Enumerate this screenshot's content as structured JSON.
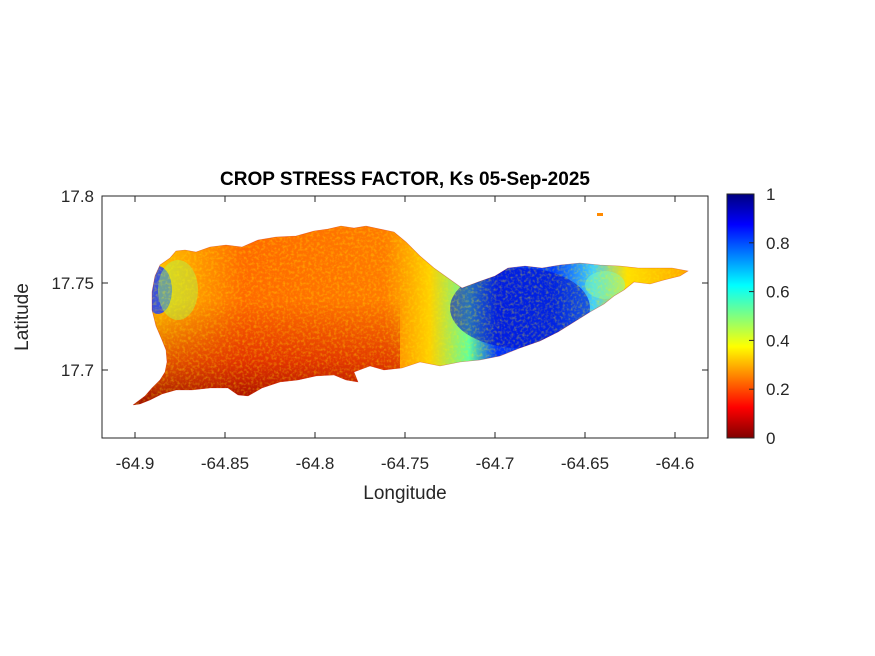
{
  "title": "CROP STRESS FACTOR, Ks  05-Sep-2025",
  "xlabel": "Longitude",
  "ylabel": "Latitude",
  "x_ticks": [
    "-64.9",
    "-64.85",
    "-64.8",
    "-64.75",
    "-64.7",
    "-64.65",
    "-64.6"
  ],
  "y_ticks": [
    "17.8",
    "17.75",
    "17.7"
  ],
  "colorbar": {
    "ticks": [
      "1",
      "0.8",
      "0.6",
      "0.4",
      "0.2",
      "0"
    ],
    "min": 0,
    "max": 1,
    "colormap": "jet"
  },
  "map": {
    "xlim": [
      -64.92,
      -64.57
    ],
    "ylim": [
      17.66,
      17.8
    ],
    "value_field": "Ks",
    "pattern": "low Ks (dark red) along the southwest coast, mid Ks (orange/yellow) over the western and central island, high Ks (blue) in the east-central part, returning to yellow/orange at the eastern tip"
  }
}
